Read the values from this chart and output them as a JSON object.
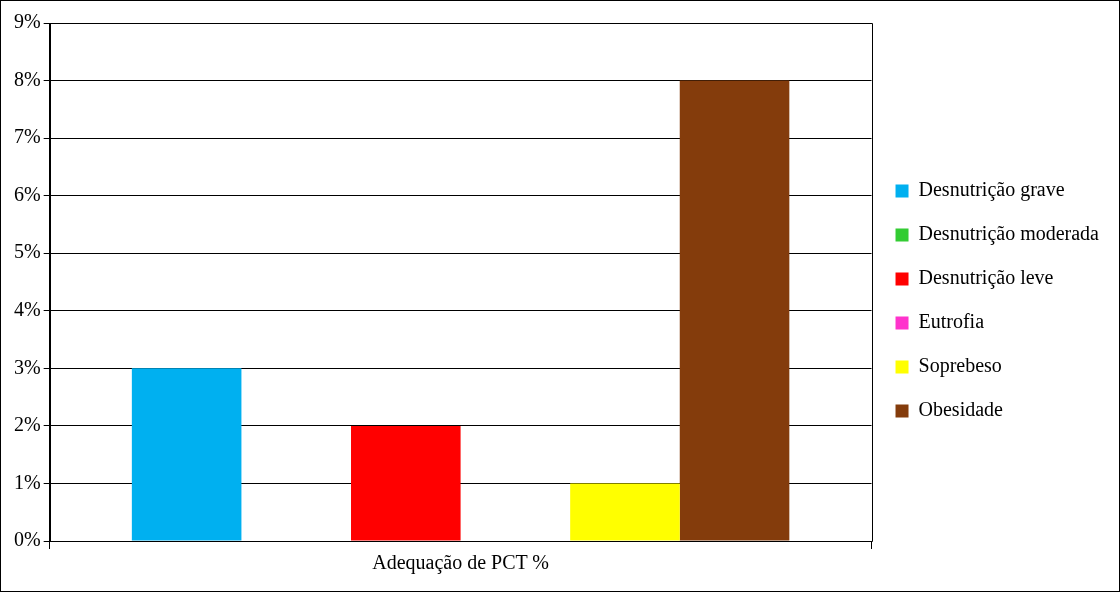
{
  "chart_data": {
    "type": "bar",
    "categories": [
      "Adequação de PCT %"
    ],
    "series": [
      {
        "name": "Desnutrição grave",
        "color": "#00b0f0",
        "values": [
          3
        ]
      },
      {
        "name": "Desnutrição moderada",
        "color": "#33cc33",
        "values": [
          0
        ]
      },
      {
        "name": "Desnutrição leve",
        "color": "#ff0000",
        "values": [
          2
        ]
      },
      {
        "name": "Eutrofia",
        "color": "#ff33cc",
        "values": [
          0
        ]
      },
      {
        "name": "Soprebeso",
        "color": "#ffff00",
        "values": [
          1
        ]
      },
      {
        "name": "Obesidade",
        "color": "#843c0c",
        "values": [
          8
        ]
      }
    ],
    "ylim": [
      0,
      9
    ],
    "yticks": [
      {
        "value": 0,
        "label": "0%"
      },
      {
        "value": 1,
        "label": "1%"
      },
      {
        "value": 2,
        "label": "2%"
      },
      {
        "value": 3,
        "label": "3%"
      },
      {
        "value": 4,
        "label": "4%"
      },
      {
        "value": 5,
        "label": "5%"
      },
      {
        "value": 6,
        "label": "6%"
      },
      {
        "value": 7,
        "label": "7%"
      },
      {
        "value": 8,
        "label": "8%"
      },
      {
        "value": 9,
        "label": "9%"
      }
    ],
    "grid": "y",
    "legend": "right"
  }
}
